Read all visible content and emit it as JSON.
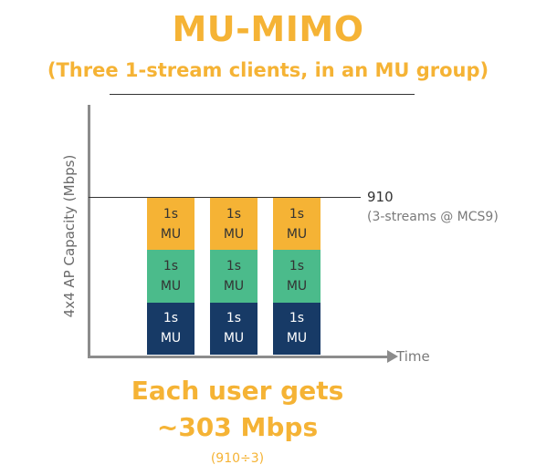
{
  "title": "MU-MIMO",
  "subtitle": "(Three 1-stream clients, in an MU group)",
  "y_axis_label": "4x4 AP Capacity (Mbps)",
  "x_axis_label": "Time",
  "capacity": {
    "value": "910",
    "note": "(3-streams @ MCS9)"
  },
  "columns": [
    {
      "blocks": [
        {
          "line1": "1s",
          "line2": "MU"
        },
        {
          "line1": "1s",
          "line2": "MU"
        },
        {
          "line1": "1s",
          "line2": "MU"
        }
      ]
    },
    {
      "blocks": [
        {
          "line1": "1s",
          "line2": "MU"
        },
        {
          "line1": "1s",
          "line2": "MU"
        },
        {
          "line1": "1s",
          "line2": "MU"
        }
      ]
    },
    {
      "blocks": [
        {
          "line1": "1s",
          "line2": "MU"
        },
        {
          "line1": "1s",
          "line2": "MU"
        },
        {
          "line1": "1s",
          "line2": "MU"
        }
      ]
    }
  ],
  "summary": {
    "line1": "Each user gets",
    "line2": "~303 Mbps",
    "line3": "(910÷3)"
  },
  "colors": {
    "accent": "#f5b335",
    "green": "#4bbb8b",
    "navy": "#173a66",
    "axis": "#8c8c8c"
  }
}
